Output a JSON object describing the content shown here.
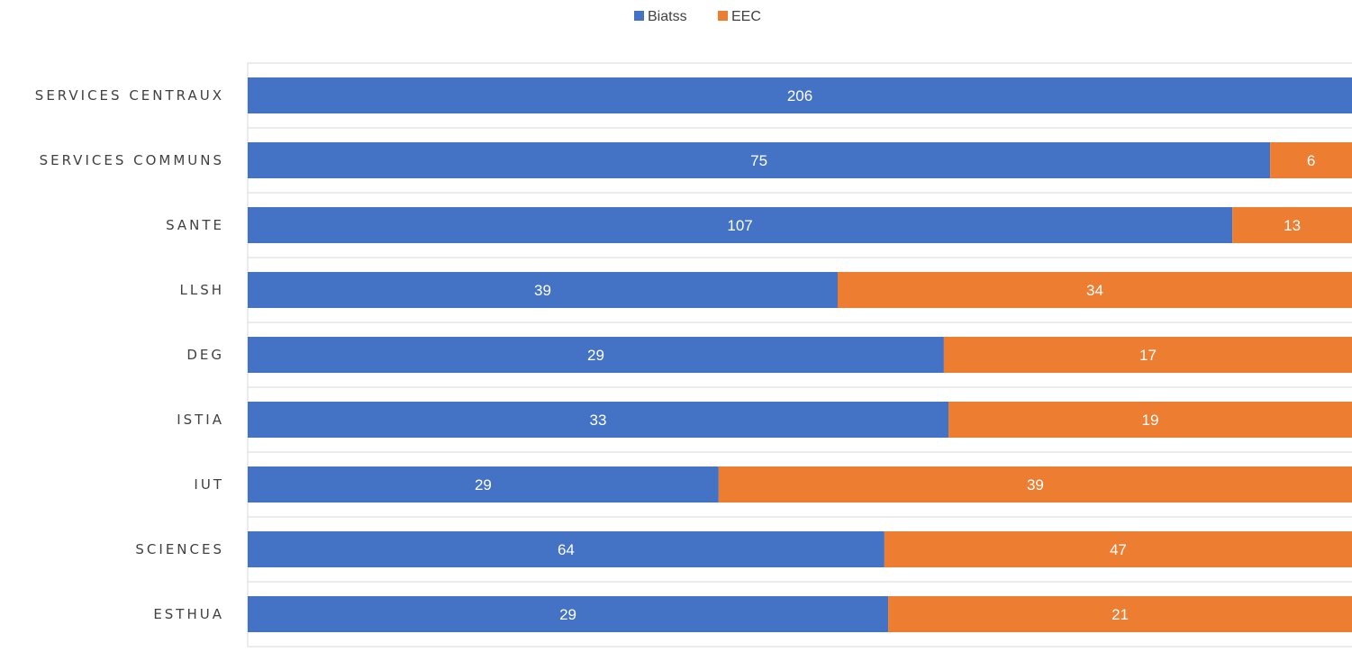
{
  "chart_data": {
    "type": "bar",
    "orientation": "horizontal",
    "stacking": "percent",
    "categories": [
      "SERVICES CENTRAUX",
      "SERVICES COMMUNS",
      "SANTE",
      "LLSH",
      "DEG",
      "ISTIA",
      "IUT",
      "SCIENCES",
      "ESTHUA"
    ],
    "series": [
      {
        "name": "Biatss",
        "color": "#4472C4",
        "values": [
          206,
          75,
          107,
          39,
          29,
          33,
          29,
          64,
          29
        ]
      },
      {
        "name": "EEC",
        "color": "#ED7D31",
        "values": [
          0,
          6,
          13,
          34,
          17,
          19,
          39,
          47,
          21
        ]
      }
    ],
    "legend_position": "top-center",
    "gridlines": "horizontal",
    "title": "",
    "xlabel": "",
    "ylabel": ""
  }
}
